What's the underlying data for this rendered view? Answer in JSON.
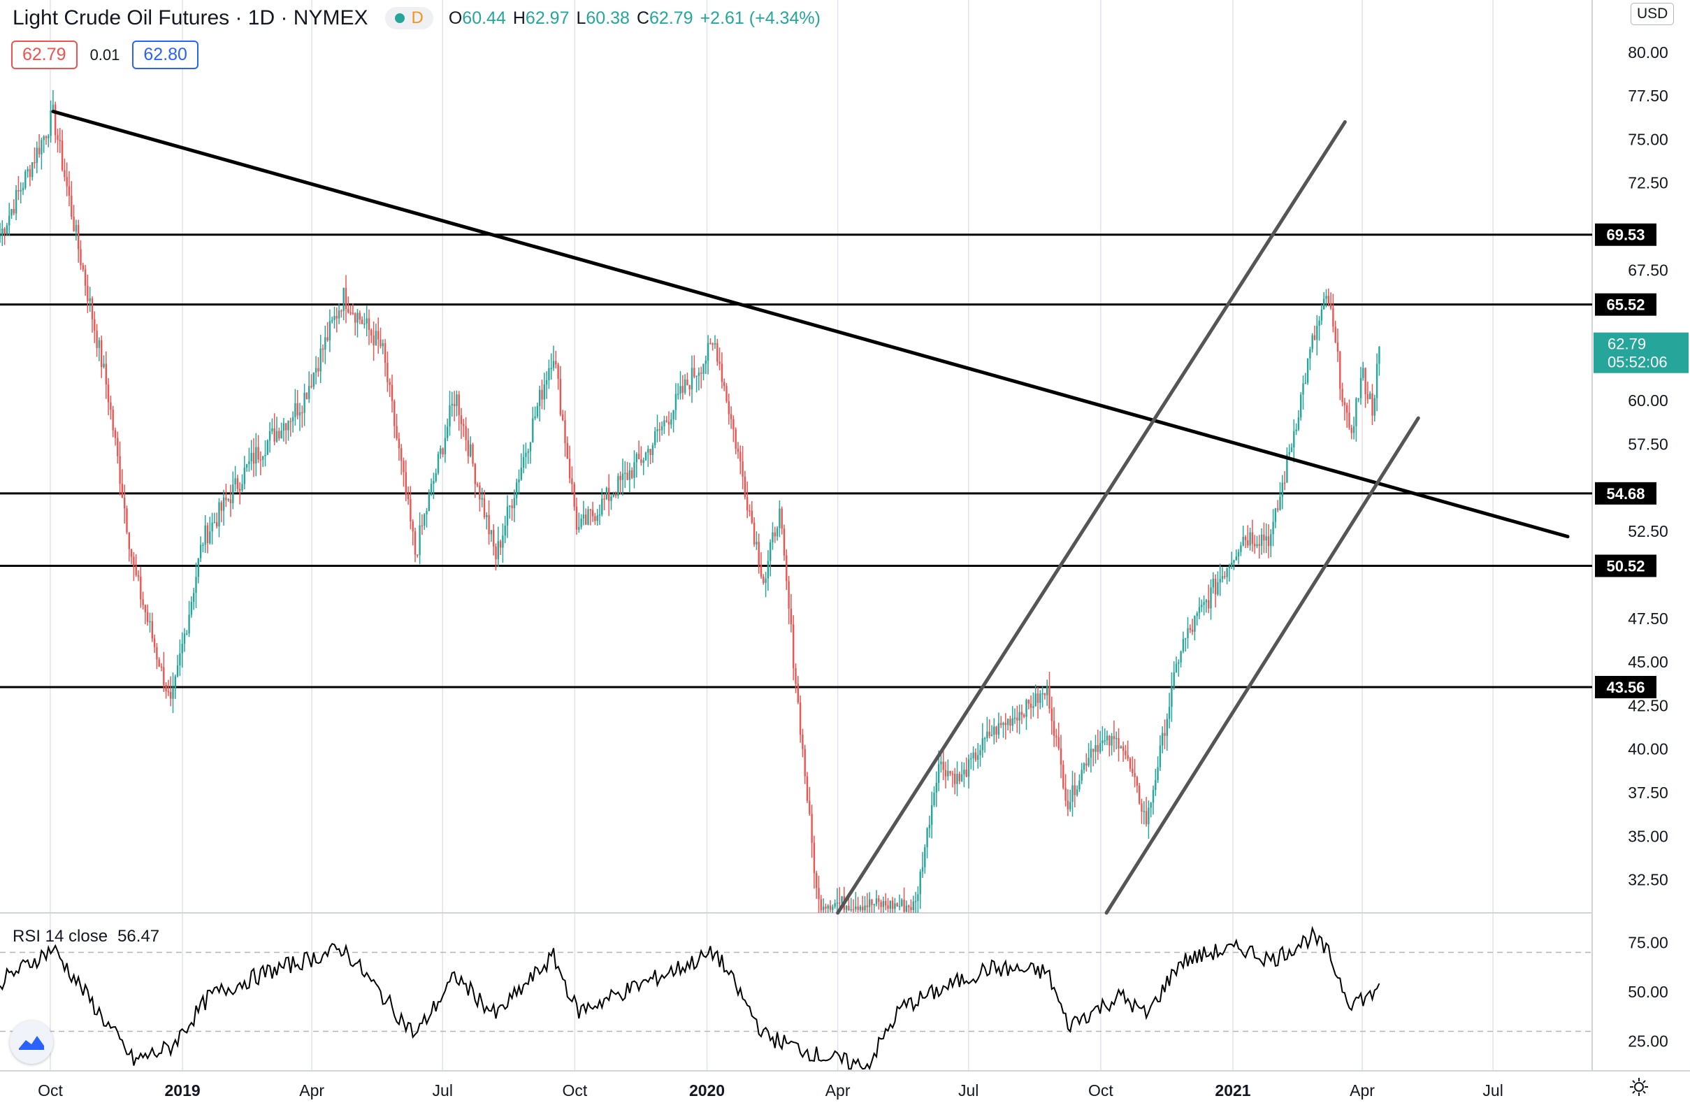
{
  "header": {
    "symbol": "Light Crude Oil Futures · 1D · NYMEX",
    "interval_badge": "D",
    "open": "60.44",
    "high": "62.97",
    "low": "60.38",
    "close": "62.79",
    "change": "+2.61 (+4.34%)",
    "bid": "62.79",
    "spread": "0.01",
    "ask": "62.80",
    "currency": "USD"
  },
  "rsi_panel": {
    "label": "RSI 14 close",
    "value": "56.47"
  },
  "price_tag": {
    "value": "62.79",
    "countdown": "05:52:06"
  },
  "colors": {
    "up": "#26a69a",
    "down": "#ef5350",
    "lines": "#000000",
    "channel": "#555555"
  },
  "chart_data": {
    "type": "candlestick",
    "x_axis_labels": [
      "Oct",
      "2019",
      "Apr",
      "Jul",
      "Oct",
      "2020",
      "Apr",
      "Jul",
      "Oct",
      "2021",
      "Apr",
      "Jul"
    ],
    "y_axis_labels": [
      "80.00",
      "77.50",
      "75.00",
      "72.50",
      "67.50",
      "60.00",
      "57.50",
      "52.50",
      "47.50",
      "45.00",
      "42.50",
      "40.00",
      "37.50",
      "35.00",
      "32.50"
    ],
    "ylim": [
      30.6,
      83.0
    ],
    "horizontal_levels": [
      69.53,
      65.52,
      54.68,
      50.52,
      43.56
    ],
    "price_path": [
      {
        "date": "2018-08-27",
        "price": 69.5
      },
      {
        "date": "2018-10-03",
        "price": 76.4
      },
      {
        "date": "2018-10-20",
        "price": 69.0
      },
      {
        "date": "2018-11-10",
        "price": 60.5
      },
      {
        "date": "2018-11-28",
        "price": 50.3
      },
      {
        "date": "2018-12-24",
        "price": 42.5
      },
      {
        "date": "2019-01-15",
        "price": 52.0
      },
      {
        "date": "2019-02-20",
        "price": 56.8
      },
      {
        "date": "2019-03-25",
        "price": 59.9
      },
      {
        "date": "2019-04-23",
        "price": 66.0
      },
      {
        "date": "2019-05-20",
        "price": 63.0
      },
      {
        "date": "2019-06-12",
        "price": 51.2
      },
      {
        "date": "2019-07-10",
        "price": 60.4
      },
      {
        "date": "2019-08-07",
        "price": 51.0
      },
      {
        "date": "2019-09-16",
        "price": 62.9
      },
      {
        "date": "2019-10-03",
        "price": 52.5
      },
      {
        "date": "2019-11-20",
        "price": 57.0
      },
      {
        "date": "2019-12-20",
        "price": 61.2
      },
      {
        "date": "2020-01-07",
        "price": 63.3
      },
      {
        "date": "2020-02-10",
        "price": 49.5
      },
      {
        "date": "2020-02-20",
        "price": 53.8
      },
      {
        "date": "2020-03-06",
        "price": 41.2
      },
      {
        "date": "2020-03-18",
        "price": 31.2
      },
      {
        "date": "2020-05-25",
        "price": 31.0
      },
      {
        "date": "2020-06-10",
        "price": 39.2
      },
      {
        "date": "2020-06-25",
        "price": 38.2
      },
      {
        "date": "2020-07-15",
        "price": 40.8
      },
      {
        "date": "2020-08-25",
        "price": 43.3
      },
      {
        "date": "2020-09-08",
        "price": 36.8
      },
      {
        "date": "2020-09-25",
        "price": 40.2
      },
      {
        "date": "2020-10-15",
        "price": 40.5
      },
      {
        "date": "2020-11-02",
        "price": 35.8
      },
      {
        "date": "2020-11-25",
        "price": 45.7
      },
      {
        "date": "2020-12-18",
        "price": 49.1
      },
      {
        "date": "2021-01-08",
        "price": 52.2
      },
      {
        "date": "2021-01-28",
        "price": 52.2
      },
      {
        "date": "2021-02-25",
        "price": 63.2
      },
      {
        "date": "2021-03-08",
        "price": 66.0
      },
      {
        "date": "2021-03-23",
        "price": 57.8
      },
      {
        "date": "2021-04-01",
        "price": 61.5
      },
      {
        "date": "2021-04-08",
        "price": 59.6
      },
      {
        "date": "2021-04-13",
        "price": 62.79
      }
    ],
    "trendlines": [
      {
        "style": "bold",
        "from": {
          "date": "2018-10-03",
          "price": 76.6
        },
        "to": {
          "date": "2021-08-22",
          "price": 52.2
        }
      },
      {
        "style": "channel",
        "from": {
          "date": "2020-04-01",
          "price": 30.6
        },
        "to": {
          "date": "2021-03-20",
          "price": 76.0
        }
      },
      {
        "style": "channel",
        "from": {
          "date": "2020-10-05",
          "price": 30.6
        },
        "to": {
          "date": "2021-05-10",
          "price": 59.0
        }
      }
    ],
    "rsi": {
      "levels": [
        70,
        30
      ],
      "y_axis_labels": [
        "75.00",
        "50.00",
        "25.00"
      ],
      "ylim": [
        10,
        90
      ],
      "path": [
        {
          "date": "2018-08-27",
          "value": 55
        },
        {
          "date": "2018-10-03",
          "value": 72
        },
        {
          "date": "2018-11-28",
          "value": 15
        },
        {
          "date": "2018-12-24",
          "value": 22
        },
        {
          "date": "2019-01-20",
          "value": 48
        },
        {
          "date": "2019-03-01",
          "value": 60
        },
        {
          "date": "2019-04-23",
          "value": 72
        },
        {
          "date": "2019-06-12",
          "value": 28
        },
        {
          "date": "2019-07-10",
          "value": 58
        },
        {
          "date": "2019-08-07",
          "value": 38
        },
        {
          "date": "2019-09-16",
          "value": 68
        },
        {
          "date": "2019-10-03",
          "value": 40
        },
        {
          "date": "2020-01-07",
          "value": 70
        },
        {
          "date": "2020-02-10",
          "value": 28
        },
        {
          "date": "2020-03-18",
          "value": 18
        },
        {
          "date": "2020-04-21",
          "value": 12
        },
        {
          "date": "2020-05-15",
          "value": 42
        },
        {
          "date": "2020-07-15",
          "value": 62
        },
        {
          "date": "2020-08-25",
          "value": 60
        },
        {
          "date": "2020-09-08",
          "value": 33
        },
        {
          "date": "2020-10-15",
          "value": 48
        },
        {
          "date": "2020-11-02",
          "value": 38
        },
        {
          "date": "2020-11-25",
          "value": 65
        },
        {
          "date": "2020-12-18",
          "value": 70
        },
        {
          "date": "2021-01-08",
          "value": 72
        },
        {
          "date": "2021-01-28",
          "value": 66
        },
        {
          "date": "2021-02-25",
          "value": 78
        },
        {
          "date": "2021-03-08",
          "value": 70
        },
        {
          "date": "2021-03-23",
          "value": 45
        },
        {
          "date": "2021-04-08",
          "value": 48
        },
        {
          "date": "2021-04-13",
          "value": 56.47
        }
      ]
    }
  }
}
